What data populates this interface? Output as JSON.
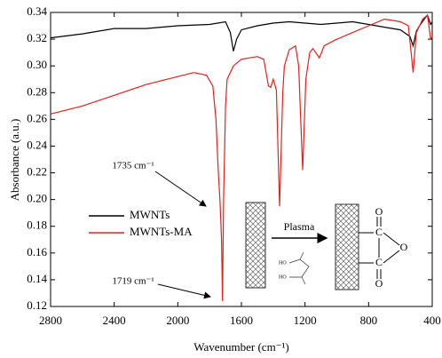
{
  "chart_data": {
    "type": "line",
    "xlabel": "Wavenumber (cm⁻¹)",
    "ylabel": "Absorbance (a.u.)",
    "xlim": [
      2800,
      400
    ],
    "ylim": [
      0.12,
      0.34
    ],
    "xticks": [
      2800,
      2400,
      2000,
      1600,
      1200,
      800,
      400
    ],
    "yticks": [
      0.12,
      0.14,
      0.16,
      0.18,
      {
        "value": 0.2,
        "label": "0.20"
      },
      0.22,
      0.24,
      0.26,
      0.28,
      {
        "value": 0.3,
        "label": "0.30"
      },
      0.32,
      0.34
    ],
    "series": [
      {
        "name": "MWNTs",
        "color": "#000000",
        "x": [
          2800,
          2600,
          2400,
          2200,
          2000,
          1800,
          1700,
          1670,
          1650,
          1630,
          1600,
          1500,
          1400,
          1300,
          1200,
          1100,
          1000,
          900,
          800,
          700,
          600,
          540,
          520,
          500,
          480,
          450,
          430,
          410,
          400
        ],
        "values": [
          0.321,
          0.324,
          0.328,
          0.328,
          0.33,
          0.331,
          0.333,
          0.325,
          0.311,
          0.32,
          0.327,
          0.33,
          0.332,
          0.333,
          0.332,
          0.331,
          0.332,
          0.333,
          0.331,
          0.329,
          0.327,
          0.322,
          0.315,
          0.326,
          0.33,
          0.335,
          0.338,
          0.331,
          0.333
        ]
      },
      {
        "name": "MWNTs-MA",
        "color": "#e8201c",
        "x": [
          2800,
          2600,
          2400,
          2200,
          2000,
          1900,
          1820,
          1780,
          1760,
          1745,
          1735,
          1725,
          1719,
          1712,
          1700,
          1690,
          1650,
          1600,
          1500,
          1460,
          1430,
          1415,
          1400,
          1380,
          1360,
          1340,
          1330,
          1300,
          1260,
          1240,
          1215,
          1195,
          1170,
          1150,
          1110,
          1080,
          1000,
          900,
          800,
          700,
          600,
          550,
          520,
          500,
          460,
          430,
          410,
          400
        ],
        "values": [
          0.264,
          0.27,
          0.278,
          0.286,
          0.292,
          0.295,
          0.293,
          0.285,
          0.26,
          0.22,
          0.2,
          0.17,
          0.124,
          0.2,
          0.27,
          0.29,
          0.3,
          0.305,
          0.307,
          0.305,
          0.285,
          0.284,
          0.29,
          0.282,
          0.195,
          0.28,
          0.3,
          0.312,
          0.315,
          0.3,
          0.222,
          0.29,
          0.31,
          0.313,
          0.306,
          0.315,
          0.32,
          0.325,
          0.33,
          0.335,
          0.333,
          0.33,
          0.295,
          0.325,
          0.335,
          0.338,
          0.32,
          0.322
        ]
      }
    ],
    "annotations": [
      "1735 cm⁻¹",
      "1719 cm⁻¹"
    ],
    "inset": {
      "arrow_label": "Plasma",
      "atoms": [
        "HO",
        "HO",
        "O",
        "O",
        "O",
        "C",
        "C"
      ]
    }
  }
}
